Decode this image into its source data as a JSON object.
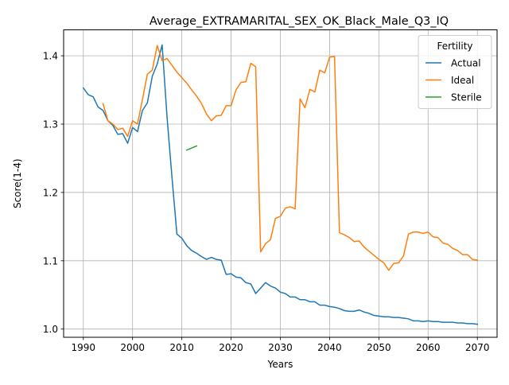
{
  "chart_data": {
    "type": "line",
    "title": "Average_EXTRAMARITAL_SEX_OK_Black_Male_Q3_IQ",
    "xlabel": "Years",
    "ylabel": "Score(1-4)",
    "xlim": [
      1986,
      2074
    ],
    "ylim": [
      0.988,
      1.438
    ],
    "xticks": [
      1990,
      2000,
      2010,
      2020,
      2030,
      2040,
      2050,
      2060,
      2070
    ],
    "yticks": [
      1.0,
      1.1,
      1.2,
      1.3,
      1.4
    ],
    "ytick_labels": [
      "1.0",
      "1.1",
      "1.2",
      "1.3",
      "1.4"
    ],
    "grid": true,
    "legend": {
      "title": "Fertility",
      "placement": "top-right"
    },
    "series": [
      {
        "name": "Actual",
        "color": "#1f77b4",
        "x": [
          1990,
          1991,
          1992,
          1993,
          1994,
          1995,
          1996,
          1997,
          1998,
          1999,
          2000,
          2001,
          2002,
          2003,
          2004,
          2005,
          2006,
          2007,
          2008,
          2009,
          2010,
          2011,
          2012,
          2013,
          2014,
          2015,
          2016,
          2017,
          2018,
          2019,
          2020,
          2021,
          2022,
          2023,
          2024,
          2025,
          2026,
          2027,
          2028,
          2029,
          2030,
          2031,
          2032,
          2033,
          2034,
          2035,
          2036,
          2037,
          2038,
          2039,
          2040,
          2041,
          2042,
          2043,
          2044,
          2045,
          2046,
          2047,
          2048,
          2049,
          2050,
          2051,
          2052,
          2053,
          2054,
          2055,
          2056,
          2057,
          2058,
          2059,
          2060,
          2061,
          2062,
          2063,
          2064,
          2065,
          2066,
          2067,
          2068,
          2069,
          2070
        ],
        "y": [
          1.353,
          1.343,
          1.34,
          1.325,
          1.32,
          1.305,
          1.298,
          1.285,
          1.286,
          1.272,
          1.295,
          1.289,
          1.32,
          1.331,
          1.37,
          1.388,
          1.416,
          1.31,
          1.222,
          1.139,
          1.133,
          1.122,
          1.115,
          1.111,
          1.106,
          1.102,
          1.105,
          1.102,
          1.101,
          1.08,
          1.081,
          1.076,
          1.075,
          1.068,
          1.066,
          1.052,
          1.06,
          1.068,
          1.063,
          1.06,
          1.054,
          1.052,
          1.047,
          1.047,
          1.043,
          1.043,
          1.04,
          1.04,
          1.035,
          1.035,
          1.033,
          1.032,
          1.03,
          1.027,
          1.026,
          1.026,
          1.028,
          1.025,
          1.023,
          1.02,
          1.019,
          1.018,
          1.018,
          1.017,
          1.017,
          1.016,
          1.015,
          1.012,
          1.012,
          1.011,
          1.012,
          1.011,
          1.011,
          1.01,
          1.01,
          1.01,
          1.009,
          1.009,
          1.008,
          1.008,
          1.007
        ]
      },
      {
        "name": "Ideal",
        "color": "#ff7f0e",
        "x": [
          1994,
          1995,
          1996,
          1997,
          1998,
          1999,
          2000,
          2001,
          2002,
          2003,
          2004,
          2005,
          2006,
          2007,
          2008,
          2009,
          2010,
          2011,
          2012,
          2013,
          2014,
          2015,
          2016,
          2017,
          2018,
          2019,
          2020,
          2021,
          2022,
          2023,
          2024,
          2025,
          2026,
          2027,
          2028,
          2029,
          2030,
          2031,
          2032,
          2033,
          2034,
          2035,
          2036,
          2037,
          2038,
          2039,
          2040,
          2041,
          2042,
          2043,
          2044,
          2045,
          2046,
          2047,
          2048,
          2049,
          2050,
          2051,
          2052,
          2053,
          2054,
          2055,
          2056,
          2057,
          2058,
          2059,
          2060,
          2061,
          2062,
          2063,
          2064,
          2065,
          2066,
          2067,
          2068,
          2069,
          2070
        ],
        "y": [
          1.33,
          1.305,
          1.3,
          1.292,
          1.294,
          1.282,
          1.305,
          1.3,
          1.336,
          1.373,
          1.379,
          1.415,
          1.393,
          1.396,
          1.386,
          1.376,
          1.368,
          1.36,
          1.35,
          1.341,
          1.33,
          1.315,
          1.305,
          1.312,
          1.313,
          1.327,
          1.327,
          1.35,
          1.361,
          1.362,
          1.389,
          1.384,
          1.113,
          1.125,
          1.131,
          1.162,
          1.165,
          1.177,
          1.179,
          1.176,
          1.337,
          1.324,
          1.351,
          1.347,
          1.379,
          1.375,
          1.398,
          1.399,
          1.141,
          1.138,
          1.134,
          1.128,
          1.129,
          1.12,
          1.114,
          1.108,
          1.102,
          1.097,
          1.086,
          1.096,
          1.097,
          1.107,
          1.139,
          1.142,
          1.142,
          1.14,
          1.142,
          1.135,
          1.134,
          1.126,
          1.124,
          1.118,
          1.115,
          1.109,
          1.109,
          1.102,
          1.101
        ]
      },
      {
        "name": "Sterile",
        "color": "#2ca02c",
        "x": [
          2011,
          2012,
          2013
        ],
        "y": [
          1.262,
          1.265,
          1.268
        ]
      }
    ]
  }
}
